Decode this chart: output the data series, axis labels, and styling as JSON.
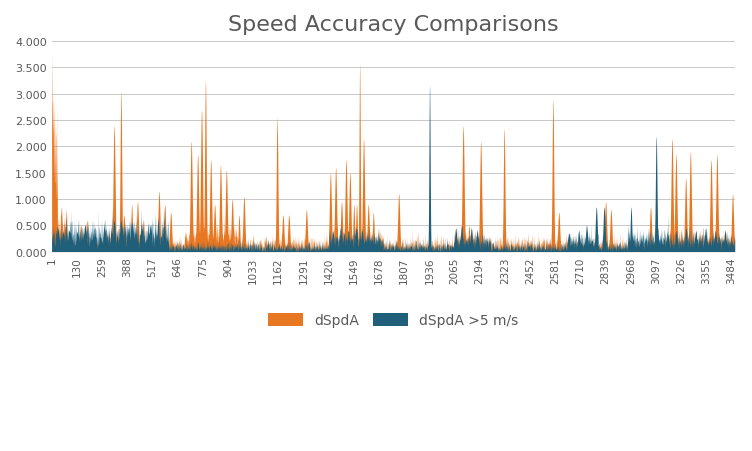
{
  "title": "Speed Accuracy Comparisons",
  "title_fontsize": 16,
  "title_color": "#595959",
  "legend_labels": [
    "dSpdA",
    "dSpdA >5 m/s"
  ],
  "orange_color": "#E87722",
  "teal_color": "#1F5F7A",
  "bg_color": "#FFFFFF",
  "grid_color": "#C8C8C8",
  "ylim": [
    0.0,
    4.0
  ],
  "yticks": [
    0.0,
    0.5,
    1.0,
    1.5,
    2.0,
    2.5,
    3.0,
    3.5,
    4.0
  ],
  "yticklabels": [
    "0.000",
    "0.500",
    "1.000",
    "1.500",
    "2.000",
    "2.500",
    "3.000",
    "3.500",
    "4.000"
  ],
  "xtick_labels": [
    "1",
    "130",
    "259",
    "388",
    "517",
    "646",
    "775",
    "904",
    "1033",
    "1162",
    "1291",
    "1420",
    "1549",
    "1678",
    "1807",
    "1936",
    "2065",
    "2194",
    "2323",
    "2452",
    "2581",
    "2710",
    "2839",
    "2968",
    "3097",
    "3226",
    "3355",
    "3484"
  ],
  "n_points": 3500
}
